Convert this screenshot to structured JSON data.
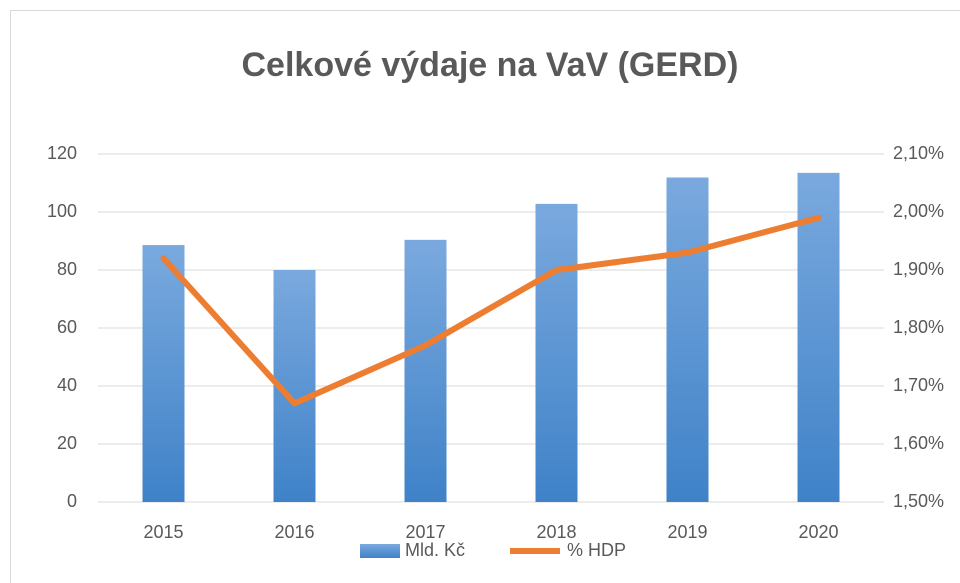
{
  "chart_data": {
    "type": "bar",
    "title": "Celkové výdaje na VaV (GERD)",
    "categories": [
      "2015",
      "2016",
      "2017",
      "2018",
      "2019",
      "2020"
    ],
    "series": [
      {
        "name": "Mld. Kč",
        "type": "bar",
        "color": "#5b9bd5",
        "values": [
          88.6,
          80.0,
          90.4,
          102.8,
          111.9,
          113.5
        ]
      },
      {
        "name": "% HDP",
        "type": "line",
        "axis": "y2",
        "color": "#ed7d31",
        "values": [
          1.92,
          1.67,
          1.77,
          1.9,
          1.93,
          1.99
        ]
      }
    ],
    "ylim": [
      0,
      120
    ],
    "yticks": [
      0,
      20,
      40,
      60,
      80,
      100,
      120
    ],
    "y2lim": [
      1.5,
      2.1
    ],
    "y2ticks": [
      {
        "value": 1.5,
        "label": "1,50%"
      },
      {
        "value": 1.6,
        "label": "1,60%"
      },
      {
        "value": 1.7,
        "label": "1,70%"
      },
      {
        "value": 1.8,
        "label": "1,80%"
      },
      {
        "value": 1.9,
        "label": "1,90%"
      },
      {
        "value": 2.0,
        "label": "2,00%"
      },
      {
        "value": 2.1,
        "label": "2,10%"
      }
    ],
    "grid": true,
    "legend": "bottom"
  }
}
